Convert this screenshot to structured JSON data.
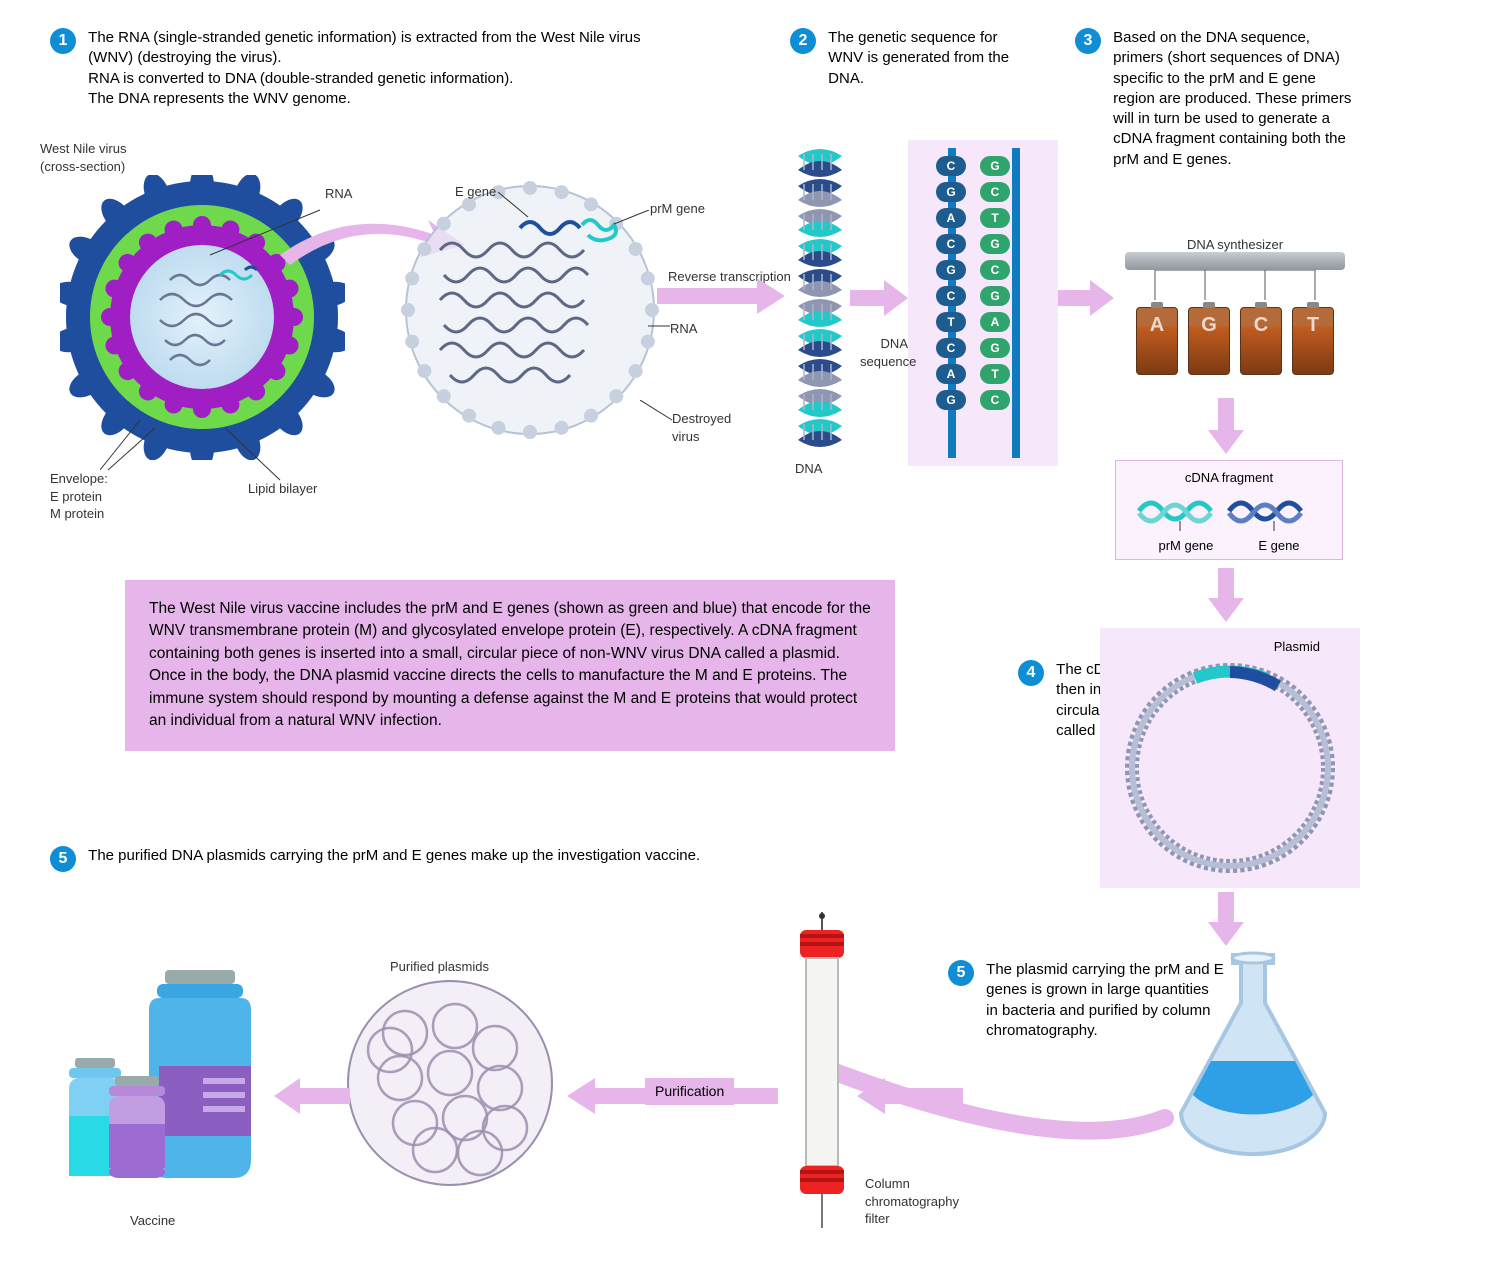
{
  "colors": {
    "badge_bg": "#0f8ed6",
    "arrow_fill": "#e6b5ea",
    "infobox_bg": "#e6b5ea",
    "virus_outer": "#1f4e9e",
    "virus_green": "#6ed94a",
    "virus_purple": "#a01fc5",
    "virus_inner": "#cde6f4",
    "dna_teal": "#23c9c9",
    "dna_navy": "#2a4c8a",
    "dna_gray": "#8e96b1",
    "seq_bg": "#f6e7fb",
    "seq_rail": "#117bbf",
    "base_dark": "#1c5c8f",
    "base_green": "#2fa56d",
    "synth_top": "#9ea4a9",
    "bottle_brown": "#a0572f",
    "bottle_liquid": "#c25d1f",
    "plasmid_bg": "#f6e7fb",
    "plasmid_ring": "#8e96b1",
    "flask_blue": "#2fa0e6",
    "flask_outline": "#a6c6e2",
    "column_cap": "#e22",
    "vaccine_blue": "#3ba7e2",
    "vaccine_cyan": "#28d9e6",
    "vaccine_purple": "#9b6bd2",
    "vaccine_lav": "#b889da"
  },
  "steps": {
    "s1": "The RNA (single-stranded genetic information) is extracted from the West Nile virus (WNV) (destroying the virus).\nRNA is converted to DNA (double-stranded genetic information).\nThe DNA represents the WNV genome.",
    "s2": "The genetic sequence for WNV is generated from the DNA.",
    "s3": "Based on the DNA sequence, primers (short sequences of DNA) specific to the prM and E gene region are produced. These primers will in turn be used to generate a cDNA fragment containing both the prM and E genes.",
    "s4": "The cDNA fragment is then inserted into a circular piece of DNA called a plasmid.",
    "s5a": "The plasmid carrying the prM and E genes is grown in large quantities in bacteria and purified by column chromatography.",
    "s5b": "The purified DNA plasmids carrying the prM and E genes make up the investigation vaccine."
  },
  "labels": {
    "virus_cs": "West Nile virus\n(cross-section)",
    "rna": "RNA",
    "e_gene": "E gene",
    "prm_gene": "prM gene",
    "rev_trans": "Reverse transcription",
    "destroyed": "Destroyed\nvirus",
    "envelope": "Envelope:\nE protein\nM protein",
    "lipid": "Lipid bilayer",
    "dna": "DNA",
    "dna_seq": "DNA\nsequence",
    "dna_synth": "DNA synthesizer",
    "cdna_frag": "cDNA fragment",
    "prm_gene2": "prM gene",
    "e_gene2": "E gene",
    "plasmid": "Plasmid",
    "column_filter": "Column\nchromatography\nfilter",
    "purification": "Purification",
    "purified_plasmids": "Purified plasmids",
    "vaccine": "Vaccine",
    "bottle_letters": [
      "A",
      "G",
      "C",
      "T"
    ]
  },
  "infobox": "The West Nile virus vaccine includes the prM and E genes (shown as green and blue) that encode for the WNV transmembrane protein (M) and glycosylated envelope protein (E), respectively. A cDNA fragment containing both genes is inserted into a small, circular piece of non-WNV virus DNA called a plasmid. Once in the body, the DNA plasmid vaccine directs the cells to  manufacture the M and E proteins. The immune system should respond by mounting a defense against the M and E proteins that would protect an individual from a natural WNV infection.",
  "seq_pairs": [
    [
      "C",
      "G"
    ],
    [
      "G",
      "C"
    ],
    [
      "A",
      "T"
    ],
    [
      "C",
      "G"
    ],
    [
      "G",
      "C"
    ],
    [
      "C",
      "G"
    ],
    [
      "T",
      "A"
    ],
    [
      "C",
      "G"
    ],
    [
      "A",
      "T"
    ],
    [
      "G",
      "C"
    ]
  ]
}
